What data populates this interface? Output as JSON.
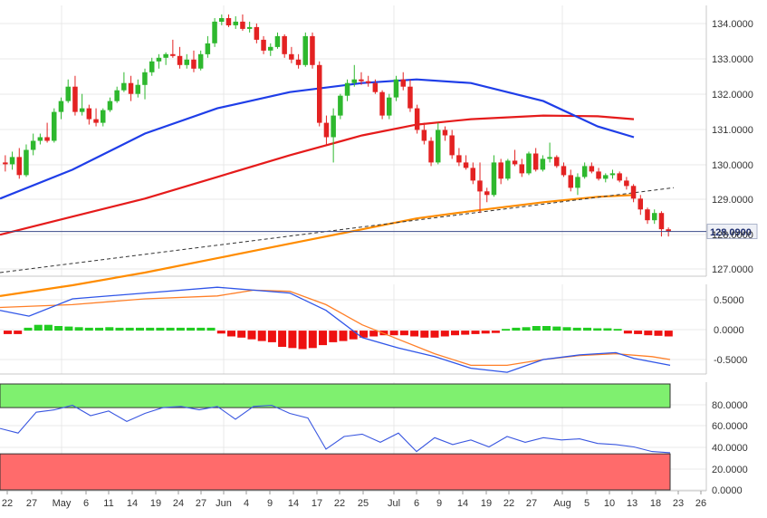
{
  "chart_data": {
    "type": "candlestick",
    "dates": [
      "22",
      "27",
      "May",
      "6",
      "11",
      "14",
      "19",
      "24",
      "27",
      "Jun",
      "4",
      "9",
      "14",
      "17",
      "22",
      "25",
      "Jul",
      "6",
      "9",
      "14",
      "19",
      "22",
      "27",
      "Aug",
      "5",
      "10",
      "13",
      "18",
      "23",
      "26"
    ],
    "price_panel": {
      "yticks": [
        "134.0000",
        "133.0000",
        "132.0000",
        "131.0000",
        "130.0000",
        "129.0000",
        "128.0000",
        "127.0000"
      ],
      "ylim": [
        126.85,
        134.35
      ],
      "last_price_label": "128.0900",
      "last_price": 128.09,
      "candles": [
        [
          130.0,
          130.2,
          129.75,
          129.95
        ],
        [
          129.95,
          130.3,
          129.8,
          130.15
        ],
        [
          130.15,
          130.4,
          129.55,
          129.65
        ],
        [
          129.65,
          130.5,
          129.6,
          130.35
        ],
        [
          130.35,
          130.8,
          130.2,
          130.6
        ],
        [
          130.6,
          130.8,
          130.5,
          130.7
        ],
        [
          130.7,
          131.1,
          130.55,
          130.6
        ],
        [
          130.6,
          131.5,
          130.55,
          131.4
        ],
        [
          131.4,
          131.8,
          131.2,
          131.7
        ],
        [
          131.7,
          132.3,
          131.65,
          132.1
        ],
        [
          132.1,
          132.4,
          131.3,
          131.4
        ],
        [
          131.4,
          131.9,
          131.3,
          131.5
        ],
        [
          131.5,
          131.6,
          131.05,
          131.2
        ],
        [
          131.2,
          131.5,
          131.0,
          131.1
        ],
        [
          131.1,
          131.5,
          131.0,
          131.45
        ],
        [
          131.45,
          131.8,
          131.4,
          131.7
        ],
        [
          131.7,
          132.1,
          131.65,
          132.0
        ],
        [
          132.0,
          132.5,
          131.95,
          132.2
        ],
        [
          132.2,
          132.4,
          131.7,
          131.9
        ],
        [
          131.9,
          132.3,
          131.8,
          132.15
        ],
        [
          132.15,
          132.6,
          131.75,
          132.5
        ],
        [
          132.5,
          132.9,
          132.4,
          132.8
        ],
        [
          132.8,
          133.0,
          132.6,
          132.9
        ],
        [
          132.9,
          133.05,
          132.7,
          133.0
        ],
        [
          133.0,
          133.4,
          132.9,
          132.95
        ],
        [
          132.95,
          133.2,
          132.6,
          132.7
        ],
        [
          132.7,
          133.0,
          132.6,
          132.85
        ],
        [
          132.85,
          133.1,
          132.5,
          132.6
        ],
        [
          132.6,
          133.1,
          132.55,
          133.0
        ],
        [
          133.0,
          133.5,
          132.9,
          133.3
        ],
        [
          133.3,
          134.0,
          133.2,
          133.9
        ],
        [
          133.9,
          134.1,
          133.8,
          134.0
        ],
        [
          134.0,
          134.1,
          133.75,
          133.8
        ],
        [
          133.8,
          134.05,
          133.7,
          133.9
        ],
        [
          133.9,
          134.1,
          133.65,
          133.7
        ],
        [
          133.7,
          133.9,
          133.6,
          133.75
        ],
        [
          133.75,
          133.85,
          133.3,
          133.4
        ],
        [
          133.4,
          133.5,
          133.0,
          133.1
        ],
        [
          133.1,
          133.3,
          132.95,
          133.2
        ],
        [
          133.2,
          133.6,
          133.15,
          133.5
        ],
        [
          133.5,
          133.55,
          132.9,
          133.0
        ],
        [
          133.0,
          133.2,
          132.75,
          132.85
        ],
        [
          132.85,
          133.0,
          132.6,
          132.7
        ],
        [
          132.7,
          133.6,
          132.65,
          133.5
        ],
        [
          133.5,
          133.6,
          132.6,
          132.7
        ],
        [
          132.7,
          132.8,
          131.0,
          131.1
        ],
        [
          131.1,
          131.3,
          130.5,
          130.7
        ],
        [
          130.7,
          131.5,
          130.0,
          131.3
        ],
        [
          131.3,
          131.9,
          131.2,
          131.85
        ],
        [
          131.85,
          132.3,
          131.7,
          132.2
        ],
        [
          132.2,
          132.7,
          132.1,
          132.3
        ],
        [
          132.3,
          132.5,
          132.15,
          132.25
        ],
        [
          132.25,
          132.4,
          132.1,
          132.2
        ],
        [
          132.2,
          132.3,
          131.9,
          131.95
        ],
        [
          131.95,
          132.0,
          131.2,
          131.3
        ],
        [
          131.3,
          131.9,
          131.2,
          131.8
        ],
        [
          131.8,
          132.4,
          131.7,
          132.3
        ],
        [
          132.3,
          132.5,
          132.0,
          132.1
        ],
        [
          132.1,
          132.3,
          131.4,
          131.5
        ],
        [
          131.5,
          131.6,
          130.8,
          130.9
        ],
        [
          130.9,
          131.1,
          130.5,
          130.6
        ],
        [
          130.6,
          130.7,
          129.9,
          130.0
        ],
        [
          130.0,
          131.1,
          129.95,
          130.9
        ],
        [
          130.9,
          131.0,
          130.6,
          130.75
        ],
        [
          130.75,
          130.9,
          130.1,
          130.2
        ],
        [
          130.2,
          130.4,
          129.9,
          130.0
        ],
        [
          130.0,
          130.2,
          129.8,
          129.85
        ],
        [
          129.85,
          130.0,
          129.4,
          129.5
        ],
        [
          129.5,
          130.0,
          128.6,
          129.2
        ],
        [
          129.2,
          129.3,
          128.9,
          129.1
        ],
        [
          129.1,
          130.2,
          129.05,
          130.0
        ],
        [
          130.0,
          130.1,
          129.4,
          129.55
        ],
        [
          129.55,
          130.1,
          129.5,
          130.05
        ],
        [
          130.05,
          130.35,
          129.9,
          129.95
        ],
        [
          129.95,
          130.1,
          129.6,
          129.7
        ],
        [
          129.7,
          130.3,
          129.65,
          130.25
        ],
        [
          130.25,
          130.4,
          129.75,
          129.8
        ],
        [
          129.8,
          130.2,
          129.75,
          130.1
        ],
        [
          130.1,
          130.55,
          130.0,
          130.15
        ],
        [
          130.15,
          130.2,
          129.85,
          129.9
        ],
        [
          129.9,
          130.0,
          129.6,
          129.65
        ],
        [
          129.65,
          129.8,
          129.2,
          129.3
        ],
        [
          129.3,
          129.7,
          129.1,
          129.6
        ],
        [
          129.6,
          130.0,
          129.55,
          129.9
        ],
        [
          129.9,
          130.0,
          129.7,
          129.75
        ],
        [
          129.75,
          129.85,
          129.5,
          129.55
        ],
        [
          129.55,
          129.7,
          129.45,
          129.65
        ],
        [
          129.65,
          129.8,
          129.55,
          129.7
        ],
        [
          129.7,
          129.75,
          129.45,
          129.5
        ],
        [
          129.5,
          129.6,
          129.25,
          129.35
        ],
        [
          129.35,
          129.4,
          128.9,
          129.0
        ],
        [
          129.0,
          129.1,
          128.55,
          128.7
        ],
        [
          128.7,
          128.75,
          128.3,
          128.4
        ],
        [
          128.4,
          128.7,
          128.3,
          128.6
        ],
        [
          128.6,
          128.65,
          127.95,
          128.15
        ],
        [
          128.15,
          128.2,
          127.95,
          128.09
        ]
      ],
      "ma_blue": [
        [
          0,
          129.0
        ],
        [
          20,
          129.8
        ],
        [
          40,
          130.8
        ],
        [
          60,
          131.5
        ],
        [
          80,
          131.95
        ],
        [
          100,
          132.2
        ],
        [
          115,
          132.3
        ],
        [
          130,
          132.2
        ],
        [
          150,
          131.7
        ],
        [
          165,
          131.0
        ],
        [
          175,
          130.7
        ]
      ],
      "ma_red": [
        [
          0,
          128.0
        ],
        [
          20,
          128.5
        ],
        [
          40,
          129.0
        ],
        [
          60,
          129.6
        ],
        [
          80,
          130.2
        ],
        [
          100,
          130.75
        ],
        [
          115,
          131.05
        ],
        [
          130,
          131.2
        ],
        [
          150,
          131.3
        ],
        [
          165,
          131.28
        ],
        [
          175,
          131.2
        ]
      ],
      "ma_orange": [
        [
          0,
          126.3
        ],
        [
          20,
          126.6
        ],
        [
          40,
          126.95
        ],
        [
          60,
          127.35
        ],
        [
          80,
          127.75
        ],
        [
          100,
          128.15
        ],
        [
          115,
          128.45
        ],
        [
          130,
          128.65
        ],
        [
          150,
          128.9
        ],
        [
          165,
          129.05
        ],
        [
          175,
          129.1
        ]
      ],
      "trendline": [
        [
          0,
          126.95
        ],
        [
          186,
          129.3
        ]
      ]
    },
    "macd_panel": {
      "yticks": [
        "0.5000",
        "0.0000",
        "-0.5000"
      ],
      "ylim": [
        -0.75,
        0.8
      ],
      "hist": [
        -0.06,
        -0.06,
        0.05,
        0.1,
        0.1,
        0.08,
        0.07,
        0.06,
        0.05,
        0.05,
        0.06,
        0.05,
        0.05,
        0.05,
        0.05,
        0.05,
        0.05,
        0.05,
        0.05,
        0.05,
        0.05,
        -0.05,
        -0.1,
        -0.12,
        -0.15,
        -0.18,
        -0.2,
        -0.28,
        -0.3,
        -0.32,
        -0.3,
        -0.25,
        -0.2,
        -0.18,
        -0.15,
        -0.12,
        -0.1,
        -0.08,
        -0.08,
        -0.08,
        -0.1,
        -0.12,
        -0.12,
        -0.1,
        -0.08,
        -0.07,
        -0.06,
        -0.05,
        -0.04,
        0.03,
        0.05,
        0.06,
        0.08,
        0.08,
        0.07,
        0.06,
        0.05,
        0.05,
        0.04,
        0.04,
        0.03,
        -0.05,
        -0.06,
        -0.08,
        -0.09,
        -0.1
      ],
      "macd_line": [
        [
          0,
          0.35
        ],
        [
          8,
          0.25
        ],
        [
          20,
          0.55
        ],
        [
          40,
          0.65
        ],
        [
          60,
          0.75
        ],
        [
          70,
          0.7
        ],
        [
          80,
          0.65
        ],
        [
          90,
          0.35
        ],
        [
          100,
          -0.12
        ],
        [
          110,
          -0.3
        ],
        [
          120,
          -0.45
        ],
        [
          130,
          -0.65
        ],
        [
          140,
          -0.72
        ],
        [
          150,
          -0.5
        ],
        [
          160,
          -0.42
        ],
        [
          170,
          -0.38
        ],
        [
          175,
          -0.48
        ],
        [
          185,
          -0.6
        ]
      ],
      "signal_line": [
        [
          0,
          0.4
        ],
        [
          20,
          0.45
        ],
        [
          40,
          0.55
        ],
        [
          60,
          0.6
        ],
        [
          70,
          0.7
        ],
        [
          80,
          0.68
        ],
        [
          90,
          0.45
        ],
        [
          100,
          0.1
        ],
        [
          110,
          -0.15
        ],
        [
          120,
          -0.4
        ],
        [
          130,
          -0.6
        ],
        [
          140,
          -0.6
        ],
        [
          150,
          -0.5
        ],
        [
          160,
          -0.43
        ],
        [
          170,
          -0.4
        ],
        [
          180,
          -0.45
        ],
        [
          185,
          -0.5
        ]
      ]
    },
    "rsi_panel": {
      "yticks": [
        "80.0000",
        "60.0000",
        "40.0000",
        "20.0000",
        "0.0000"
      ],
      "ylim": [
        -2,
        92
      ],
      "overbought": 70,
      "oversold": 30,
      "rsi_line": [
        [
          0,
          52
        ],
        [
          5,
          48
        ],
        [
          10,
          66
        ],
        [
          15,
          68
        ],
        [
          20,
          72
        ],
        [
          25,
          63
        ],
        [
          30,
          67
        ],
        [
          35,
          58
        ],
        [
          40,
          65
        ],
        [
          45,
          70
        ],
        [
          50,
          71
        ],
        [
          55,
          68
        ],
        [
          60,
          71
        ],
        [
          65,
          60
        ],
        [
          70,
          71
        ],
        [
          75,
          72
        ],
        [
          80,
          65
        ],
        [
          85,
          61
        ],
        [
          90,
          34
        ],
        [
          95,
          45
        ],
        [
          100,
          47
        ],
        [
          105,
          40
        ],
        [
          110,
          48
        ],
        [
          115,
          32
        ],
        [
          120,
          44
        ],
        [
          125,
          38
        ],
        [
          130,
          42
        ],
        [
          135,
          36
        ],
        [
          140,
          45
        ],
        [
          145,
          40
        ],
        [
          150,
          44
        ],
        [
          155,
          42
        ],
        [
          160,
          43
        ],
        [
          165,
          39
        ],
        [
          170,
          38
        ],
        [
          175,
          36
        ],
        [
          180,
          32
        ],
        [
          185,
          31
        ]
      ]
    },
    "colors": {
      "bull": "#2eb82e",
      "bear": "#e32222",
      "ma_blue": "#1f3ee8",
      "ma_red": "#e51b1b",
      "ma_orange": "#ff8c00",
      "macd_line": "#2f55e8",
      "signal_line": "#ff7f27",
      "overbought_fill": "#7ff06f",
      "oversold_fill": "#ff6b6b",
      "last_price_line": "#3a4a8a",
      "last_price_box": "#eef0f6"
    }
  }
}
